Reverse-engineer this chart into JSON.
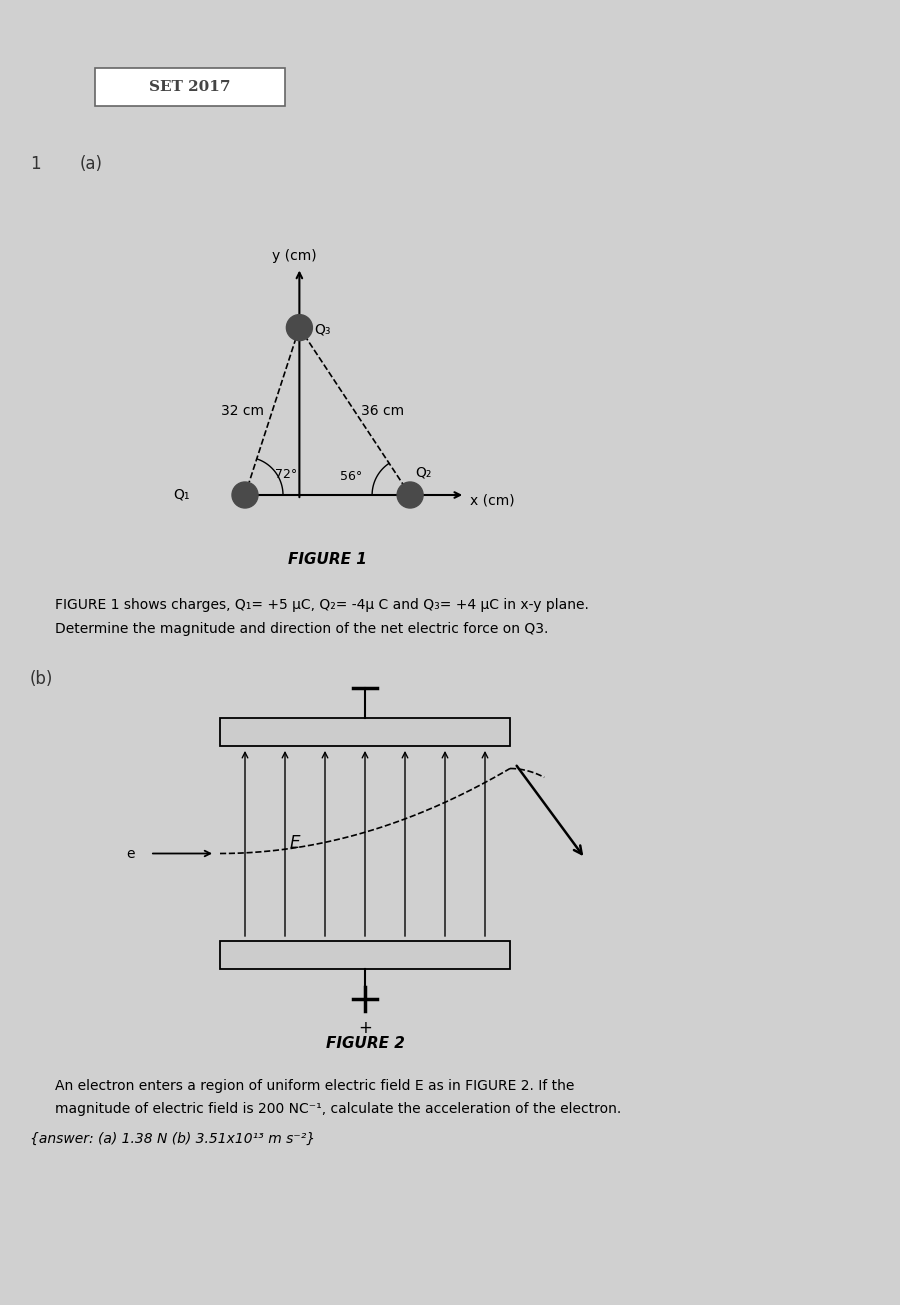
{
  "bg_color": "#d0d0d0",
  "title_box_text": "SET 2017",
  "label_1": "1",
  "label_a": "(a)",
  "label_b": "(b)",
  "fig1_caption": "FIGURE 1",
  "fig2_caption": "FIGURE 2",
  "fig1_text_line1": "FIGURE 1 shows charges, Q₁= +5 μC, Q₂= -4μ C and Q₃= +4 μC in x-y plane.",
  "fig1_text_line2": "Determine the magnitude and direction of the net electric force on Q3.",
  "fig2_text_line1": "An electron enters a region of uniform electric field E as in FIGURE 2. If the",
  "fig2_text_line2": "magnitude of electric field is 200 NC⁻¹, calculate the acceleration of the electron.",
  "answer_text": "{answer: (a) 1.38 N (b) 3.51x10¹³ m s⁻²}",
  "charge_color": "#4a4a4a",
  "angle_72_label": "72°",
  "angle_56_label": "56°",
  "dist_32": "32 cm",
  "dist_36": "36 cm",
  "axis_label_x": "x (cm)",
  "axis_label_y": "y (cm)",
  "q1_label": "Q₁",
  "q2_label": "Q₂",
  "q3_label": "Q₃",
  "e_label": "e",
  "E_label": "E"
}
